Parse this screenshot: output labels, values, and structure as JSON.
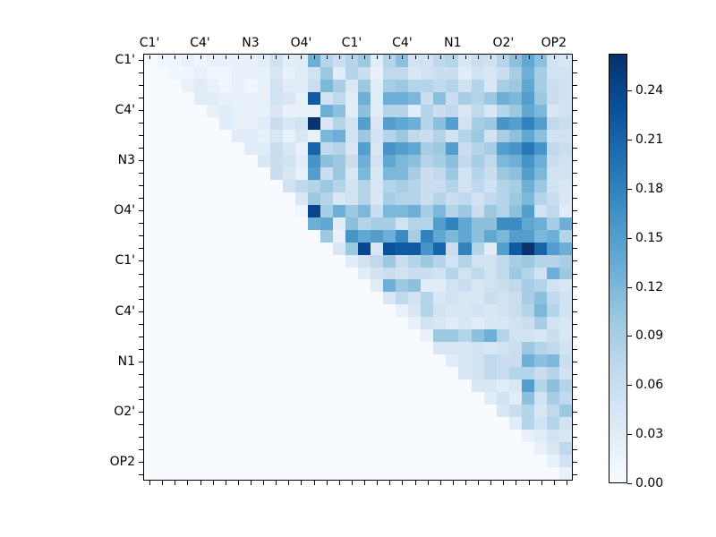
{
  "figure": {
    "background": "#ffffff",
    "axis_color": "#000000"
  },
  "chart_data": {
    "type": "heatmap",
    "title": "",
    "xlabel": "",
    "ylabel": "",
    "n": 34,
    "colormap": "Blues",
    "vmin": 0.0,
    "vmax": 0.2625,
    "grid": false,
    "x_tick_labels": [
      "C1'",
      "C4'",
      "N3",
      "O4'",
      "C1'",
      "C4'",
      "N1",
      "O2'",
      "OP2"
    ],
    "y_tick_labels": [
      "C1'",
      "C4'",
      "N3",
      "O4'",
      "C1'",
      "C4'",
      "N1",
      "O2'",
      "OP2"
    ],
    "tick_label_cell_positions": [
      0,
      4,
      8,
      12,
      16,
      20,
      24,
      28,
      32
    ],
    "colorbar": {
      "tick_labels": [
        "0.00",
        "0.03",
        "0.06",
        "0.09",
        "0.12",
        "0.15",
        "0.18",
        "0.21",
        "0.24"
      ],
      "tick_values": [
        0.0,
        0.03,
        0.06,
        0.09,
        0.12,
        0.15,
        0.18,
        0.21,
        0.24
      ],
      "position": "right"
    },
    "cmap_stops": [
      [
        0.0,
        "#f7fbff"
      ],
      [
        0.125,
        "#deebf7"
      ],
      [
        0.25,
        "#c6dbef"
      ],
      [
        0.375,
        "#9ecae1"
      ],
      [
        0.5,
        "#6baed6"
      ],
      [
        0.625,
        "#4292c6"
      ],
      [
        0.75,
        "#2171b5"
      ],
      [
        0.875,
        "#08519c"
      ],
      [
        1.0,
        "#08306b"
      ]
    ],
    "matrix": [
      [
        0,
        0.01,
        0.01,
        0.02,
        0.01,
        0.02,
        0.02,
        0.02,
        0.02,
        0.03,
        0.05,
        0.03,
        0.03,
        0.13,
        0.08,
        0.06,
        0.08,
        0.1,
        0.03,
        0.08,
        0.11,
        0.05,
        0.05,
        0.07,
        0.08,
        0.04,
        0.06,
        0.05,
        0.08,
        0.11,
        0.14,
        0.11,
        0.05,
        0.04
      ],
      [
        0,
        0,
        0.01,
        0.01,
        0.02,
        0.01,
        0.01,
        0.02,
        0.02,
        0.02,
        0.04,
        0.02,
        0.03,
        0.05,
        0.1,
        0.03,
        0.08,
        0.06,
        0.02,
        0.07,
        0.07,
        0.04,
        0.05,
        0.06,
        0.06,
        0.03,
        0.05,
        0.04,
        0.06,
        0.09,
        0.13,
        0.09,
        0.05,
        0.05
      ],
      [
        0,
        0,
        0,
        0.02,
        0.03,
        0.02,
        0.01,
        0.02,
        0.01,
        0.02,
        0.05,
        0.03,
        0.03,
        0.06,
        0.12,
        0.09,
        0.04,
        0.1,
        0.03,
        0.09,
        0.1,
        0.08,
        0.08,
        0.07,
        0.08,
        0.05,
        0.08,
        0.04,
        0.09,
        0.1,
        0.14,
        0.09,
        0.06,
        0.05
      ],
      [
        0,
        0,
        0,
        0,
        0.03,
        0.03,
        0.02,
        0.02,
        0.02,
        0.02,
        0.05,
        0.04,
        0.02,
        0.22,
        0.05,
        0.07,
        0.03,
        0.13,
        0.03,
        0.13,
        0.13,
        0.12,
        0.06,
        0.11,
        0.06,
        0.09,
        0.08,
        0.1,
        0.13,
        0.12,
        0.15,
        0.1,
        0.06,
        0.05
      ],
      [
        0,
        0,
        0,
        0,
        0,
        0.02,
        0.03,
        0.02,
        0.02,
        0.02,
        0.04,
        0.02,
        0.02,
        0.02,
        0.13,
        0.11,
        0.03,
        0.11,
        0.03,
        0.08,
        0.08,
        0.03,
        0.08,
        0.06,
        0.07,
        0.04,
        0.07,
        0.04,
        0.08,
        0.1,
        0.14,
        0.12,
        0.04,
        0.05
      ],
      [
        0,
        0,
        0,
        0,
        0,
        0,
        0.03,
        0.02,
        0.02,
        0.03,
        0.06,
        0.04,
        0.05,
        0.26,
        0.04,
        0.08,
        0.05,
        0.15,
        0.04,
        0.15,
        0.14,
        0.13,
        0.08,
        0.11,
        0.15,
        0.05,
        0.09,
        0.1,
        0.16,
        0.15,
        0.18,
        0.15,
        0.07,
        0.06
      ],
      [
        0,
        0,
        0,
        0,
        0,
        0,
        0,
        0.03,
        0.03,
        0.02,
        0.04,
        0.02,
        0.04,
        0.02,
        0.12,
        0.13,
        0.05,
        0.1,
        0.05,
        0.08,
        0.1,
        0.07,
        0.06,
        0.08,
        0.05,
        0.08,
        0.1,
        0.05,
        0.09,
        0.11,
        0.14,
        0.11,
        0.05,
        0.05
      ],
      [
        0,
        0,
        0,
        0,
        0,
        0,
        0,
        0,
        0.03,
        0.03,
        0.06,
        0.04,
        0.02,
        0.21,
        0.07,
        0.08,
        0.04,
        0.15,
        0.04,
        0.16,
        0.15,
        0.14,
        0.09,
        0.1,
        0.15,
        0.06,
        0.08,
        0.09,
        0.15,
        0.16,
        0.19,
        0.16,
        0.07,
        0.06
      ],
      [
        0,
        0,
        0,
        0,
        0,
        0,
        0,
        0,
        0,
        0.04,
        0.06,
        0.05,
        0.03,
        0.16,
        0.11,
        0.1,
        0.06,
        0.13,
        0.05,
        0.14,
        0.12,
        0.11,
        0.08,
        0.09,
        0.11,
        0.07,
        0.09,
        0.07,
        0.12,
        0.13,
        0.16,
        0.13,
        0.06,
        0.05
      ],
      [
        0,
        0,
        0,
        0,
        0,
        0,
        0,
        0,
        0,
        0,
        0.06,
        0.04,
        0.02,
        0.15,
        0.06,
        0.1,
        0.04,
        0.12,
        0.04,
        0.12,
        0.12,
        0.09,
        0.06,
        0.07,
        0.1,
        0.05,
        0.08,
        0.06,
        0.1,
        0.11,
        0.15,
        0.12,
        0.05,
        0.05
      ],
      [
        0,
        0,
        0,
        0,
        0,
        0,
        0,
        0,
        0,
        0,
        0,
        0.05,
        0.07,
        0.08,
        0.1,
        0.08,
        0.05,
        0.08,
        0.04,
        0.08,
        0.09,
        0.08,
        0.06,
        0.06,
        0.08,
        0.05,
        0.07,
        0.05,
        0.08,
        0.09,
        0.13,
        0.1,
        0.05,
        0.04
      ],
      [
        0,
        0,
        0,
        0,
        0,
        0,
        0,
        0,
        0,
        0,
        0,
        0,
        0.04,
        0.1,
        0.08,
        0.04,
        0.05,
        0.08,
        0.04,
        0.09,
        0.08,
        0.08,
        0.06,
        0.08,
        0.06,
        0.07,
        0.05,
        0.07,
        0.08,
        0.1,
        0.12,
        0.08,
        0.06,
        0.04
      ],
      [
        0,
        0,
        0,
        0,
        0,
        0,
        0,
        0,
        0,
        0,
        0,
        0,
        0.01,
        0.24,
        0.09,
        0.13,
        0.1,
        0.12,
        0.06,
        0.12,
        0.12,
        0.13,
        0.09,
        0.12,
        0.08,
        0.1,
        0.06,
        0.1,
        0.08,
        0.11,
        0.15,
        0.05,
        0.07,
        0.03
      ],
      [
        0,
        0,
        0,
        0,
        0,
        0,
        0,
        0,
        0,
        0,
        0,
        0,
        0,
        0.13,
        0.14,
        0.03,
        0.11,
        0.08,
        0.09,
        0.09,
        0.05,
        0.08,
        0.08,
        0.15,
        0.18,
        0.14,
        0.11,
        0.11,
        0.17,
        0.17,
        0.14,
        0.13,
        0.09,
        0.13
      ],
      [
        0,
        0,
        0,
        0,
        0,
        0,
        0,
        0,
        0,
        0,
        0,
        0,
        0,
        0,
        0.1,
        0.02,
        0.16,
        0.14,
        0.15,
        0.13,
        0.17,
        0.09,
        0.18,
        0.14,
        0.12,
        0.14,
        0.11,
        0.14,
        0.12,
        0.15,
        0.15,
        0.12,
        0.13,
        0.08
      ],
      [
        0,
        0,
        0,
        0,
        0,
        0,
        0,
        0,
        0,
        0,
        0,
        0,
        0,
        0,
        0,
        0.04,
        0.1,
        0.24,
        0.04,
        0.23,
        0.22,
        0.22,
        0.16,
        0.21,
        0.06,
        0.18,
        0.08,
        0.03,
        0.15,
        0.22,
        0.26,
        0.21,
        0.15,
        0.13
      ],
      [
        0,
        0,
        0,
        0,
        0,
        0,
        0,
        0,
        0,
        0,
        0,
        0,
        0,
        0,
        0,
        0,
        0.03,
        0.05,
        0.07,
        0.1,
        0.06,
        0.08,
        0.1,
        0.08,
        0.05,
        0.08,
        0.05,
        0.05,
        0.07,
        0.09,
        0.1,
        0.08,
        0.08,
        0.09
      ],
      [
        0,
        0,
        0,
        0,
        0,
        0,
        0,
        0,
        0,
        0,
        0,
        0,
        0,
        0,
        0,
        0,
        0,
        0.03,
        0.05,
        0.06,
        0.05,
        0.06,
        0.06,
        0.05,
        0.08,
        0.05,
        0.07,
        0.05,
        0.07,
        0.1,
        0.08,
        0.05,
        0.13,
        0.1
      ],
      [
        0,
        0,
        0,
        0,
        0,
        0,
        0,
        0,
        0,
        0,
        0,
        0,
        0,
        0,
        0,
        0,
        0,
        0,
        0.03,
        0.13,
        0.1,
        0.11,
        0.03,
        0.03,
        0.05,
        0.06,
        0.04,
        0.05,
        0.06,
        0.07,
        0.09,
        0.08,
        0.05,
        0.04
      ],
      [
        0,
        0,
        0,
        0,
        0,
        0,
        0,
        0,
        0,
        0,
        0,
        0,
        0,
        0,
        0,
        0,
        0,
        0,
        0,
        0.04,
        0.07,
        0.05,
        0.08,
        0.04,
        0.05,
        0.04,
        0.04,
        0.06,
        0.05,
        0.06,
        0.09,
        0.11,
        0.07,
        0.05
      ],
      [
        0,
        0,
        0,
        0,
        0,
        0,
        0,
        0,
        0,
        0,
        0,
        0,
        0,
        0,
        0,
        0,
        0,
        0,
        0,
        0,
        0.02,
        0.04,
        0.08,
        0.05,
        0.04,
        0.04,
        0.05,
        0.04,
        0.05,
        0.06,
        0.08,
        0.12,
        0.08,
        0.05
      ],
      [
        0,
        0,
        0,
        0,
        0,
        0,
        0,
        0,
        0,
        0,
        0,
        0,
        0,
        0,
        0,
        0,
        0,
        0,
        0,
        0,
        0,
        0.02,
        0.05,
        0.04,
        0.03,
        0.04,
        0.03,
        0.04,
        0.04,
        0.05,
        0.06,
        0.09,
        0.05,
        0.04
      ],
      [
        0,
        0,
        0,
        0,
        0,
        0,
        0,
        0,
        0,
        0,
        0,
        0,
        0,
        0,
        0,
        0,
        0,
        0,
        0,
        0,
        0,
        0,
        0.02,
        0.1,
        0.1,
        0.08,
        0.11,
        0.13,
        0.08,
        0.05,
        0.05,
        0.04,
        0.06,
        0.04
      ],
      [
        0,
        0,
        0,
        0,
        0,
        0,
        0,
        0,
        0,
        0,
        0,
        0,
        0,
        0,
        0,
        0,
        0,
        0,
        0,
        0,
        0,
        0,
        0,
        0.04,
        0.04,
        0.04,
        0.05,
        0.04,
        0.05,
        0.06,
        0.1,
        0.08,
        0.07,
        0.05
      ],
      [
        0,
        0,
        0,
        0,
        0,
        0,
        0,
        0,
        0,
        0,
        0,
        0,
        0,
        0,
        0,
        0,
        0,
        0,
        0,
        0,
        0,
        0,
        0,
        0,
        0.03,
        0.04,
        0.05,
        0.07,
        0.06,
        0.06,
        0.13,
        0.11,
        0.12,
        0.06
      ],
      [
        0,
        0,
        0,
        0,
        0,
        0,
        0,
        0,
        0,
        0,
        0,
        0,
        0,
        0,
        0,
        0,
        0,
        0,
        0,
        0,
        0,
        0,
        0,
        0,
        0,
        0.04,
        0.05,
        0.07,
        0.06,
        0.08,
        0.08,
        0.06,
        0.08,
        0.05
      ],
      [
        0,
        0,
        0,
        0,
        0,
        0,
        0,
        0,
        0,
        0,
        0,
        0,
        0,
        0,
        0,
        0,
        0,
        0,
        0,
        0,
        0,
        0,
        0,
        0,
        0,
        0,
        0.04,
        0.04,
        0.03,
        0.04,
        0.15,
        0.08,
        0.11,
        0.08
      ],
      [
        0,
        0,
        0,
        0,
        0,
        0,
        0,
        0,
        0,
        0,
        0,
        0,
        0,
        0,
        0,
        0,
        0,
        0,
        0,
        0,
        0,
        0,
        0,
        0,
        0,
        0,
        0,
        0.03,
        0.05,
        0.03,
        0.11,
        0.05,
        0.09,
        0.07
      ],
      [
        0,
        0,
        0,
        0,
        0,
        0,
        0,
        0,
        0,
        0,
        0,
        0,
        0,
        0,
        0,
        0,
        0,
        0,
        0,
        0,
        0,
        0,
        0,
        0,
        0,
        0,
        0,
        0,
        0.04,
        0.06,
        0.08,
        0.04,
        0.07,
        0.1
      ],
      [
        0,
        0,
        0,
        0,
        0,
        0,
        0,
        0,
        0,
        0,
        0,
        0,
        0,
        0,
        0,
        0,
        0,
        0,
        0,
        0,
        0,
        0,
        0,
        0,
        0,
        0,
        0,
        0,
        0,
        0.03,
        0.08,
        0.05,
        0.08,
        0.05
      ],
      [
        0,
        0,
        0,
        0,
        0,
        0,
        0,
        0,
        0,
        0,
        0,
        0,
        0,
        0,
        0,
        0,
        0,
        0,
        0,
        0,
        0,
        0,
        0,
        0,
        0,
        0,
        0,
        0,
        0,
        0,
        0.02,
        0.03,
        0.05,
        0.04
      ],
      [
        0,
        0,
        0,
        0,
        0,
        0,
        0,
        0,
        0,
        0,
        0,
        0,
        0,
        0,
        0,
        0,
        0,
        0,
        0,
        0,
        0,
        0,
        0,
        0,
        0,
        0,
        0,
        0,
        0,
        0,
        0,
        0.02,
        0.04,
        0.07
      ],
      [
        0,
        0,
        0,
        0,
        0,
        0,
        0,
        0,
        0,
        0,
        0,
        0,
        0,
        0,
        0,
        0,
        0,
        0,
        0,
        0,
        0,
        0,
        0,
        0,
        0,
        0,
        0,
        0,
        0,
        0,
        0,
        0,
        0.02,
        0.05
      ],
      [
        0,
        0,
        0,
        0,
        0,
        0,
        0,
        0,
        0,
        0,
        0,
        0,
        0,
        0,
        0,
        0,
        0,
        0,
        0,
        0,
        0,
        0,
        0,
        0,
        0,
        0,
        0,
        0,
        0,
        0,
        0,
        0,
        0,
        0.02
      ]
    ]
  }
}
